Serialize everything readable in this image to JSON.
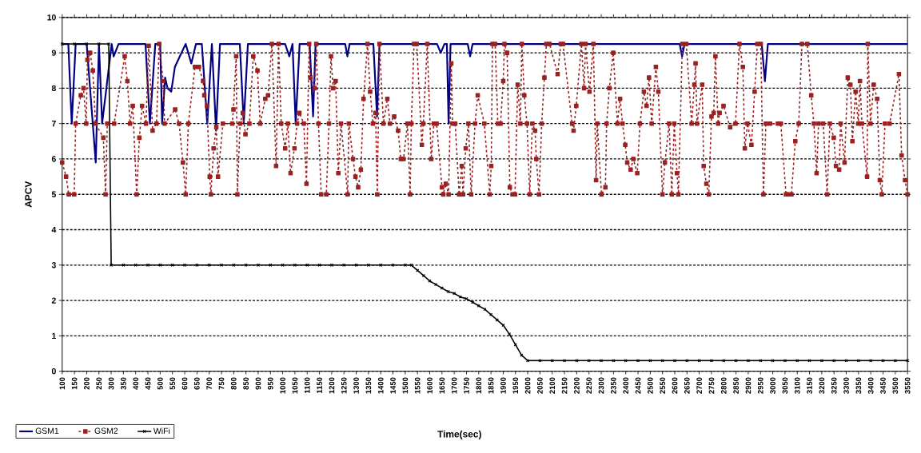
{
  "chart_data": {
    "type": "line",
    "xlabel": "Time(sec)",
    "ylabel": "APCV",
    "xlim": [
      100,
      3550
    ],
    "ylim": [
      0,
      10
    ],
    "xticks": [
      100,
      150,
      200,
      250,
      300,
      350,
      400,
      450,
      500,
      550,
      600,
      650,
      700,
      750,
      800,
      850,
      900,
      950,
      1000,
      1050,
      1100,
      1150,
      1200,
      1250,
      1300,
      1350,
      1400,
      1450,
      1500,
      1550,
      1600,
      1650,
      1700,
      1750,
      1800,
      1850,
      1900,
      1950,
      2000,
      2050,
      2100,
      2150,
      2200,
      2250,
      2300,
      2350,
      2400,
      2450,
      2500,
      2550,
      2600,
      2650,
      2700,
      2750,
      2800,
      2850,
      2900,
      2950,
      3000,
      3050,
      3100,
      3150,
      3200,
      3250,
      3300,
      3350,
      3400,
      3450,
      3500,
      3550
    ],
    "yticks": [
      0,
      1,
      2,
      3,
      4,
      5,
      6,
      7,
      8,
      9,
      10
    ],
    "grid": "y",
    "legend": "bottom left",
    "series": [
      {
        "name": "GSM1",
        "color": "#000080",
        "marker": "none",
        "line_style": "solid",
        "x": [
          100,
          125,
          139,
          155,
          200,
          237,
          250,
          263,
          302,
          310,
          330,
          440,
          458,
          480,
          500,
          508,
          520,
          530,
          545,
          560,
          604,
          627,
          646,
          670,
          692,
          711,
          728,
          744,
          825,
          841,
          858,
          1010,
          1027,
          1040,
          1053,
          1069,
          1110,
          1124,
          1134,
          1255,
          1264,
          1273,
          1370,
          1385,
          1395,
          1630,
          1645,
          1660,
          1670,
          1677,
          1685,
          1755,
          1765,
          1775,
          2620,
          2630,
          2640,
          2955,
          2968,
          2980,
          3550
        ],
        "values": [
          9.25,
          9.25,
          7.0,
          9.25,
          9.25,
          5.9,
          9.25,
          7.0,
          9.25,
          8.9,
          9.25,
          9.25,
          7.0,
          9.25,
          9.25,
          7.0,
          8.3,
          8.0,
          7.9,
          8.6,
          9.25,
          8.7,
          9.25,
          9.25,
          7.0,
          9.25,
          6.8,
          9.25,
          9.25,
          7.0,
          9.25,
          9.25,
          8.9,
          9.25,
          7.0,
          9.25,
          9.25,
          7.2,
          9.25,
          9.25,
          8.9,
          9.25,
          9.25,
          7.2,
          9.25,
          9.25,
          9.0,
          9.25,
          9.25,
          7.0,
          9.25,
          9.25,
          8.9,
          9.25,
          9.25,
          8.9,
          9.25,
          9.25,
          8.2,
          9.25,
          9.25
        ]
      },
      {
        "name": "GSM2",
        "color": "#9b2020",
        "marker": "square",
        "line_style": "dashed",
        "x": [
          100,
          116,
          127,
          149,
          155,
          176,
          187,
          198,
          203,
          214,
          225,
          236,
          268,
          277,
          284,
          312,
          355,
          366,
          377,
          388,
          404,
          415,
          426,
          442,
          453,
          469,
          485,
          496,
          512,
          518,
          561,
          577,
          593,
          604,
          615,
          642,
          658,
          675,
          680,
          691,
          702,
          707,
          718,
          729,
          736,
          756,
          794,
          799,
          810,
          815,
          826,
          837,
          848,
          864,
          880,
          897,
          908,
          929,
          940,
          956,
          973,
          983,
          994,
          1010,
          1021,
          1032,
          1048,
          1059,
          1068,
          1086,
          1097,
          1108,
          1113,
          1130,
          1137,
          1146,
          1157,
          1178,
          1189,
          1197,
          1206,
          1216,
          1227,
          1238,
          1265,
          1270,
          1287,
          1297,
          1308,
          1319,
          1330,
          1346,
          1357,
          1368,
          1379,
          1386,
          1395,
          1411,
          1427,
          1438,
          1455,
          1471,
          1482,
          1493,
          1509,
          1520,
          1525,
          1536,
          1547,
          1568,
          1574,
          1590,
          1606,
          1617,
          1628,
          1650,
          1655,
          1666,
          1677,
          1688,
          1693,
          1704,
          1720,
          1731,
          1736,
          1747,
          1758,
          1769,
          1785,
          1796,
          1823,
          1845,
          1851,
          1856,
          1867,
          1878,
          1889,
          1900,
          1905,
          1916,
          1927,
          1938,
          1948,
          1959,
          1970,
          1976,
          1986,
          1997,
          2008,
          2019,
          2030,
          2035,
          2046,
          2057,
          2068,
          2076,
          2089,
          2122,
          2135,
          2144,
          2181,
          2187,
          2198,
          2219,
          2230,
          2236,
          2252,
          2268,
          2279,
          2284,
          2301,
          2317,
          2322,
          2333,
          2349,
          2366,
          2377,
          2387,
          2398,
          2406,
          2420,
          2431,
          2447,
          2458,
          2474,
          2485,
          2495,
          2506,
          2523,
          2533,
          2550,
          2560,
          2577,
          2588,
          2598,
          2609,
          2615,
          2631,
          2647,
          2669,
          2680,
          2685,
          2691,
          2712,
          2718,
          2729,
          2739,
          2750,
          2759,
          2766,
          2777,
          2783,
          2799,
          2826,
          2848,
          2864,
          2878,
          2886,
          2897,
          2913,
          2926,
          2937,
          2951,
          2962,
          2972,
          2989,
          3021,
          3033,
          3054,
          3060,
          3076,
          3092,
          3106,
          3119,
          3141,
          3157,
          3168,
          3179,
          3187,
          3206,
          3222,
          3233,
          3249,
          3258,
          3271,
          3277,
          3293,
          3306,
          3317,
          3325,
          3338,
          3349,
          3356,
          3364,
          3385,
          3388,
          3399,
          3412,
          3426,
          3437,
          3445,
          3458,
          3477,
          3515,
          3526,
          3540,
          3550
        ],
        "values": [
          5.9,
          5.5,
          5.0,
          5.0,
          7.0,
          7.8,
          8.0,
          7.0,
          8.8,
          9.0,
          8.5,
          7.0,
          6.6,
          5.0,
          7.0,
          7.0,
          8.9,
          8.2,
          7.0,
          7.5,
          5.0,
          6.6,
          7.5,
          7.0,
          9.2,
          6.8,
          7.0,
          9.25,
          8.2,
          7.0,
          7.4,
          7.0,
          5.9,
          5.0,
          7.0,
          8.6,
          8.6,
          8.2,
          7.8,
          7.5,
          5.5,
          5.0,
          6.3,
          6.9,
          5.5,
          7.0,
          7.0,
          7.4,
          8.9,
          5.0,
          7.0,
          7.3,
          6.7,
          7.0,
          8.9,
          8.5,
          7.0,
          7.7,
          7.8,
          9.25,
          5.8,
          9.25,
          7.0,
          6.3,
          7.0,
          5.6,
          6.3,
          7.0,
          7.3,
          7.0,
          5.3,
          9.25,
          8.3,
          8.0,
          9.25,
          7.0,
          5.0,
          5.0,
          7.0,
          8.9,
          8.0,
          8.2,
          5.6,
          7.0,
          5.0,
          7.0,
          6.0,
          5.5,
          5.2,
          5.7,
          7.7,
          9.25,
          7.9,
          7.0,
          7.3,
          5.0,
          9.25,
          7.0,
          7.7,
          7.0,
          7.2,
          6.8,
          6.0,
          6.0,
          7.0,
          5.0,
          7.0,
          9.25,
          9.25,
          6.4,
          7.0,
          9.25,
          6.0,
          7.0,
          7.0,
          5.2,
          5.0,
          5.3,
          5.0,
          8.7,
          7.0,
          7.0,
          5.0,
          5.8,
          5.0,
          6.3,
          7.0,
          5.0,
          7.0,
          7.8,
          7.0,
          5.0,
          5.8,
          9.25,
          9.25,
          7.0,
          7.0,
          8.2,
          9.25,
          9.0,
          5.2,
          5.0,
          5.0,
          8.1,
          7.0,
          9.25,
          7.8,
          7.0,
          5.0,
          7.0,
          6.8,
          6.0,
          5.0,
          7.0,
          8.3,
          9.25,
          9.25,
          8.4,
          9.25,
          9.25,
          7.0,
          6.8,
          7.5,
          9.25,
          8.0,
          9.25,
          7.9,
          9.25,
          5.4,
          7.0,
          5.0,
          5.2,
          7.0,
          8.0,
          9.0,
          7.0,
          7.7,
          7.0,
          6.4,
          5.9,
          5.7,
          6.0,
          5.6,
          7.0,
          7.9,
          7.5,
          8.3,
          7.0,
          8.6,
          7.9,
          5.0,
          5.9,
          7.0,
          5.0,
          7.0,
          5.6,
          5.0,
          9.25,
          9.25,
          7.0,
          8.1,
          8.7,
          7.0,
          8.1,
          5.8,
          5.3,
          5.0,
          7.2,
          7.3,
          8.9,
          7.0,
          7.3,
          7.5,
          6.9,
          7.0,
          9.25,
          8.6,
          6.3,
          7.0,
          6.4,
          7.9,
          9.25,
          9.25,
          5.0,
          7.0,
          7.0,
          7.0,
          7.0,
          5.0,
          5.0,
          5.0,
          6.5,
          7.0,
          9.25,
          9.25,
          7.8,
          7.0,
          5.6,
          7.0,
          7.0,
          5.0,
          7.0,
          6.6,
          5.8,
          5.7,
          7.0,
          5.9,
          8.3,
          8.1,
          6.5,
          7.9,
          7.0,
          8.2,
          7.0,
          5.5,
          9.25,
          7.0,
          8.1,
          7.7,
          5.4,
          5.0,
          7.0,
          7.0,
          8.4,
          6.1,
          5.4,
          5.0
        ]
      },
      {
        "name": "WiFi",
        "color": "#000000",
        "marker": "cross",
        "line_style": "solid",
        "x": [
          100,
          150,
          200,
          250,
          290,
          300,
          350,
          400,
          450,
          500,
          550,
          600,
          650,
          700,
          750,
          800,
          850,
          900,
          950,
          1000,
          1050,
          1100,
          1150,
          1200,
          1250,
          1300,
          1350,
          1400,
          1450,
          1500,
          1525,
          1550,
          1575,
          1600,
          1625,
          1650,
          1675,
          1700,
          1725,
          1750,
          1775,
          1800,
          1825,
          1850,
          1875,
          1900,
          1925,
          1950,
          1975,
          2000,
          2050,
          2100,
          2150,
          2200,
          2250,
          2300,
          2350,
          2400,
          2450,
          2500,
          2550,
          2600,
          2650,
          2700,
          2750,
          2800,
          2850,
          2900,
          2950,
          3000,
          3050,
          3100,
          3150,
          3200,
          3250,
          3300,
          3350,
          3400,
          3450,
          3500,
          3550
        ],
        "values": [
          9.25,
          9.25,
          9.25,
          9.25,
          9.25,
          3,
          3,
          3,
          3,
          3,
          3,
          3,
          3,
          3,
          3,
          3,
          3,
          3,
          3,
          3,
          3,
          3,
          3,
          3,
          3,
          3,
          3,
          3,
          3,
          3,
          3,
          2.85,
          2.7,
          2.55,
          2.45,
          2.35,
          2.25,
          2.2,
          2.1,
          2.05,
          1.95,
          1.85,
          1.75,
          1.6,
          1.45,
          1.3,
          1.05,
          0.75,
          0.45,
          0.3,
          0.3,
          0.3,
          0.3,
          0.3,
          0.3,
          0.3,
          0.3,
          0.3,
          0.3,
          0.3,
          0.3,
          0.3,
          0.3,
          0.3,
          0.3,
          0.3,
          0.3,
          0.3,
          0.3,
          0.3,
          0.3,
          0.3,
          0.3,
          0.3,
          0.3,
          0.3,
          0.3,
          0.3,
          0.3,
          0.3,
          0.3
        ]
      }
    ]
  }
}
